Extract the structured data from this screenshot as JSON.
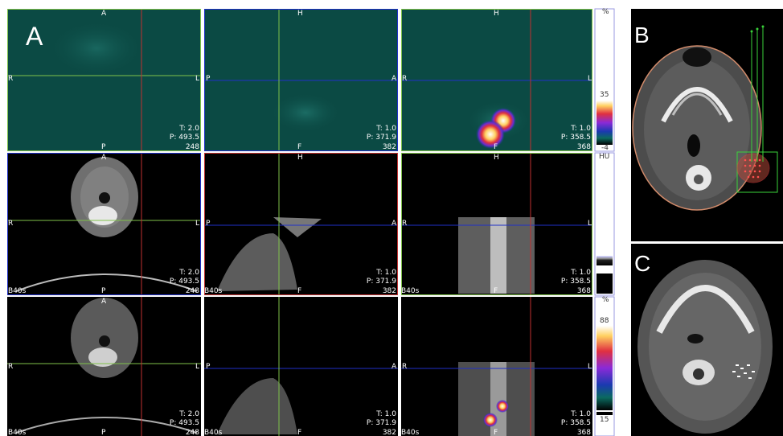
{
  "panels": {
    "a": {
      "letter": "A"
    },
    "b": {
      "letter": "B"
    },
    "c": {
      "letter": "C"
    }
  },
  "pet_row": {
    "axial": {
      "top": "A",
      "bottom": "P",
      "left": "R",
      "right": "L",
      "t_val": "T: 2.0",
      "p_val": "P: 493.5",
      "slice": "248"
    },
    "sagittal": {
      "top": "H",
      "bottom": "F",
      "left": "P",
      "right": "A",
      "t_val": "T: 1.0",
      "p_val": "P: 371.9",
      "slice": "382"
    },
    "coronal": {
      "top": "H",
      "bottom": "F",
      "left": "R",
      "right": "L",
      "t_val": "T: 1.0",
      "p_val": "P: 358.5",
      "slice": "368"
    }
  },
  "ct_row": {
    "axial": {
      "top": "A",
      "bottom": "P",
      "left": "R",
      "right": "L",
      "t_val": "T: 2.0",
      "p_val": "P: 493.5",
      "slice": "248",
      "kernel": "B40s"
    },
    "sagittal": {
      "top": "H",
      "bottom": "F",
      "left": "P",
      "right": "A",
      "t_val": "T: 1.0",
      "p_val": "P: 371.9",
      "slice": "382",
      "kernel": "B40s"
    },
    "coronal": {
      "top": "H",
      "bottom": "F",
      "left": "R",
      "right": "L",
      "t_val": "T: 1.0",
      "p_val": "P: 358.5",
      "slice": "368",
      "kernel": "B40s"
    }
  },
  "fused_row": {
    "axial": {
      "top": "A",
      "bottom": "P",
      "left": "R",
      "right": "L",
      "t_val": "T: 2.0",
      "p_val": "P: 493.5",
      "slice": "248",
      "kernel": "B40s"
    },
    "sagittal": {
      "top": "H",
      "bottom": "F",
      "left": "P",
      "right": "A",
      "t_val": "T: 1.0",
      "p_val": "P: 371.9",
      "slice": "382",
      "kernel": "B40s"
    },
    "coronal": {
      "top": "H",
      "bottom": "F",
      "left": "R",
      "right": "L",
      "t_val": "T: 1.0",
      "p_val": "P: 358.5",
      "slice": "368",
      "kernel": "B40s"
    }
  },
  "scales": {
    "pet": {
      "unit": "%",
      "max": "35",
      "min": "-4"
    },
    "ct": {
      "unit": "HU"
    },
    "fused": {
      "unit": "%",
      "max": "88",
      "min": "15"
    }
  },
  "colors": {
    "green_line": "#7fc24a",
    "blue_line": "#2030c8",
    "red_line": "#c03030",
    "pet_bg": "#0b4a44"
  }
}
